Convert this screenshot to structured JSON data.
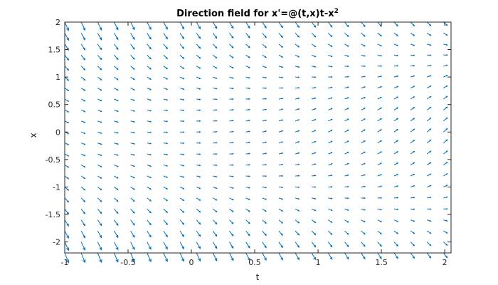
{
  "chart_data": {
    "type": "quiver",
    "title": "Direction field for x'=@(t,x)t-x",
    "title_superscript": "2",
    "xlabel": "t",
    "ylabel": "x",
    "xlim": [
      -1,
      2.05
    ],
    "ylim": [
      -2.2,
      2
    ],
    "xticks": [
      -1,
      -0.5,
      0,
      0.5,
      1,
      1.5,
      2
    ],
    "xtick_labels": [
      "-1",
      "-0.5",
      "0",
      "0.5",
      "1",
      "1.5",
      "2"
    ],
    "yticks": [
      -2,
      -1.5,
      -1,
      -0.5,
      0,
      0.5,
      1,
      1.5,
      2
    ],
    "ytick_labels": [
      "-2",
      "-1.5",
      "-1",
      "-0.5",
      "0",
      "0.5",
      "1",
      "1.5",
      "2"
    ],
    "field_function": "t - x^2",
    "t_grid": {
      "start": -1,
      "step": 0.13,
      "count": 24
    },
    "x_grid": {
      "start": -2.2,
      "step": 0.2,
      "count": 22
    },
    "arrow_color": "#0072BD",
    "axis_color": "#262626",
    "grid": false,
    "box": true
  }
}
